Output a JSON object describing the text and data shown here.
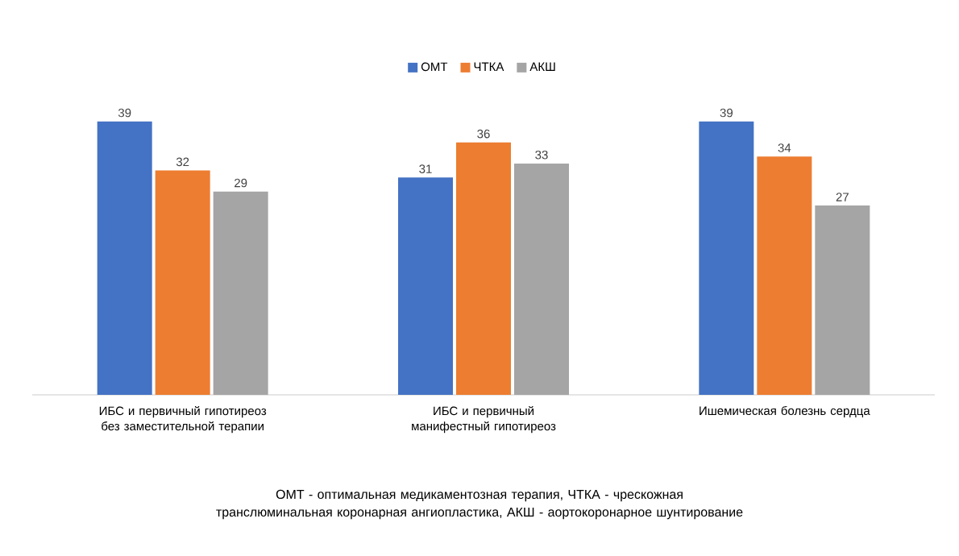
{
  "chart_data": {
    "type": "bar",
    "categories": [
      "ИБС и первичный гипотиреоз без заместительной терапии",
      "ИБС и первичный манифестный гипотиреоз",
      "Ишемическая болезнь сердца"
    ],
    "series": [
      {
        "name": "ОМТ",
        "color": "#4472c4",
        "values": [
          39,
          31,
          39
        ]
      },
      {
        "name": "ЧТКА",
        "color": "#ed7d31",
        "values": [
          32,
          36,
          34
        ]
      },
      {
        "name": "АКШ",
        "color": "#a5a5a5",
        "values": [
          29,
          33,
          27
        ]
      }
    ],
    "data_labels": true,
    "legend": "top",
    "annotations": [
      "ОМТ - оптимальная медикаментозная терапия, ЧТКА - чрескожная транслюминальная коронарная ангиопластика, АКШ - аортокоронарное шунтирование"
    ]
  }
}
